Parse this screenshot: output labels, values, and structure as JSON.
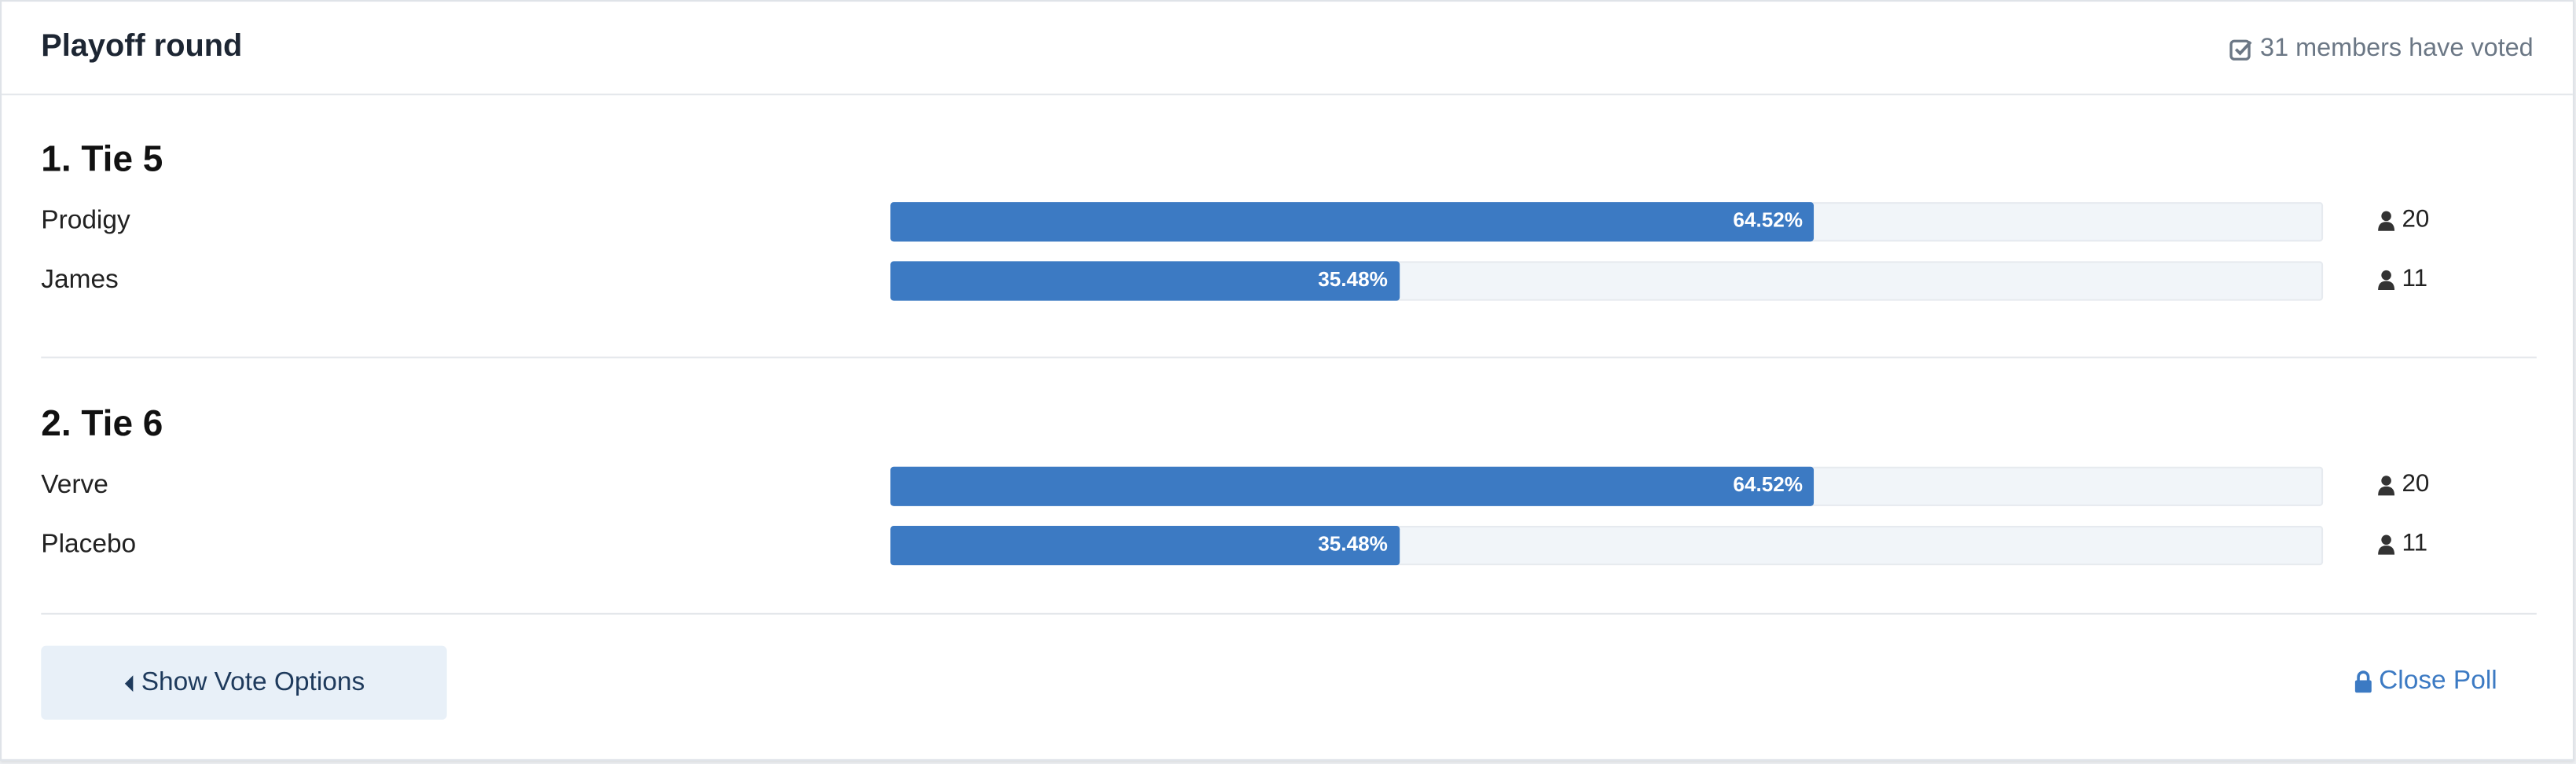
{
  "header": {
    "title": "Playoff round",
    "voters": "31 members have voted"
  },
  "questions": [
    {
      "title": "1. Tie 5",
      "options": [
        {
          "label": "Prodigy",
          "percent": 64.52,
          "percent_label": "64.52%",
          "votes": 20
        },
        {
          "label": "James",
          "percent": 35.48,
          "percent_label": "35.48%",
          "votes": 11
        }
      ]
    },
    {
      "title": "2. Tie 6",
      "options": [
        {
          "label": "Verve",
          "percent": 64.52,
          "percent_label": "64.52%",
          "votes": 20
        },
        {
          "label": "Placebo",
          "percent": 35.48,
          "percent_label": "35.48%",
          "votes": 11
        }
      ]
    }
  ],
  "footer": {
    "show_options": "Show Vote Options",
    "close": "Close Poll"
  }
}
